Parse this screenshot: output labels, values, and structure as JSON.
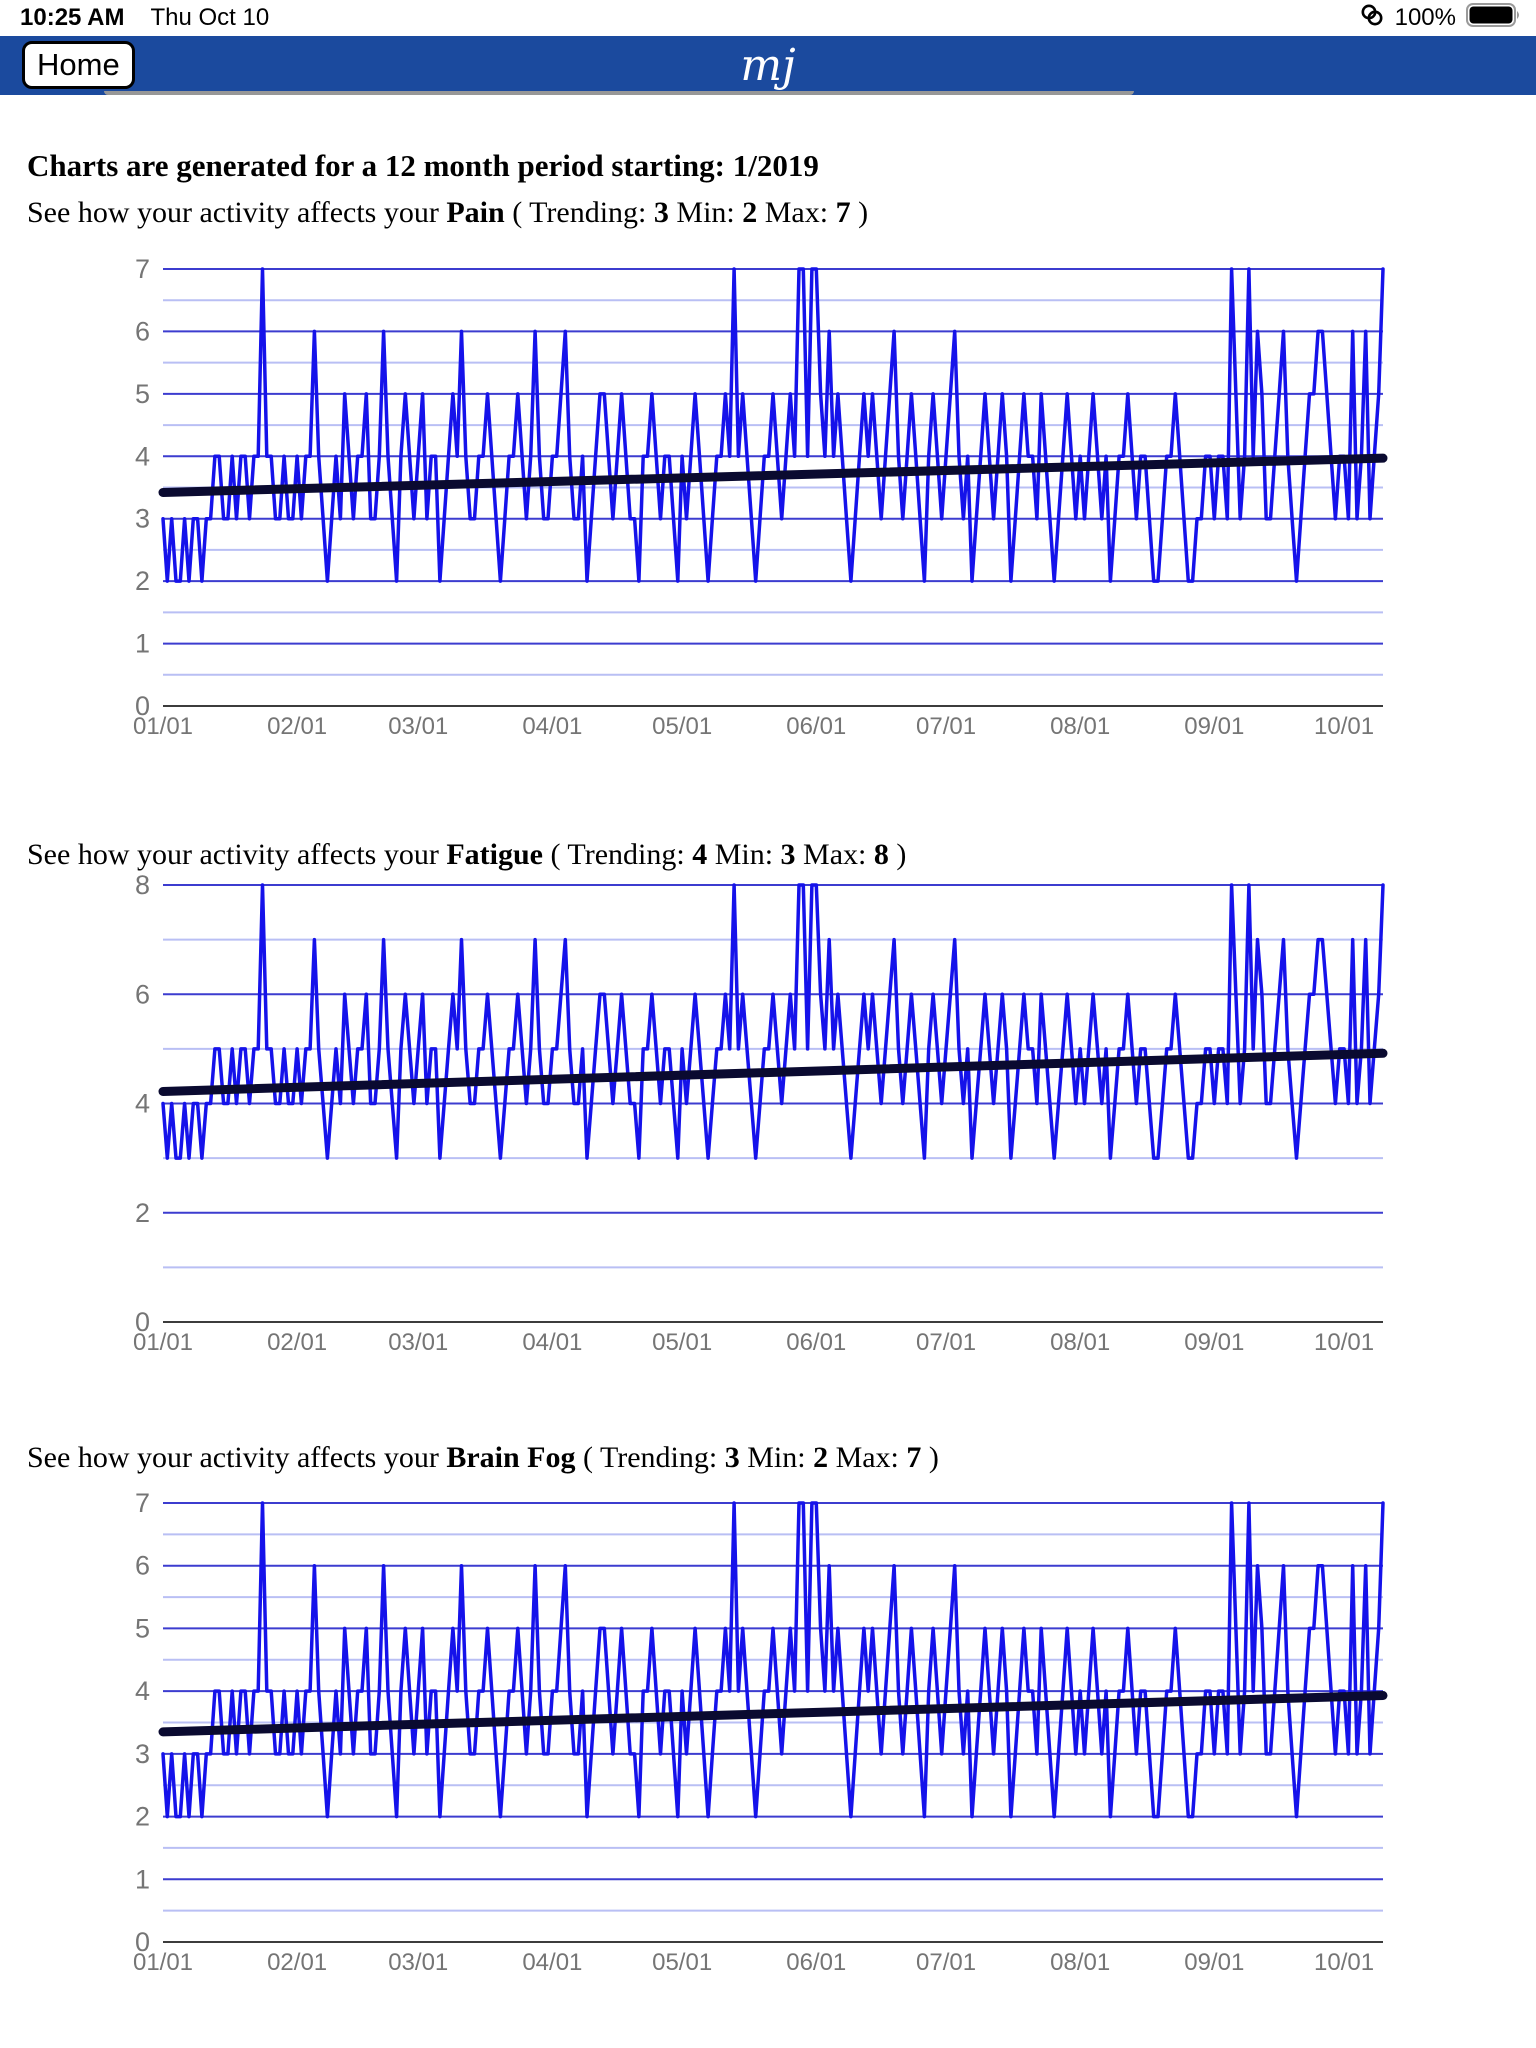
{
  "status_bar": {
    "time": "10:25 AM",
    "date": "Thu Oct 10",
    "battery_percent": "100%",
    "icons": [
      "personal-hotspot-icon",
      "battery-full-icon"
    ]
  },
  "header": {
    "home_button_label": "Home",
    "logo_text": "mj"
  },
  "page": {
    "title": "Charts are generated for a 12 month period starting: 1/2019"
  },
  "colors": {
    "header_bg": "#1b4a9e",
    "data_line": "#1512ea",
    "trend_line": "#0a0a30",
    "grid_major": "#3c3ccf",
    "grid_minor": "#b9bff4",
    "axis_line": "#3c3c3c",
    "axis_label": "#757575",
    "logo_text": "#ffffff"
  },
  "chart_data": [
    {
      "type": "line",
      "heading_prefix": "See how your activity affects your ",
      "metric": "Pain",
      "h_open": " ( Trending: ",
      "trending": "3",
      "h_min": " Min: ",
      "min": "2",
      "h_max": " Max: ",
      "max": "7",
      "h_close": " )",
      "ylim": [
        0,
        7
      ],
      "y_label_step": 1,
      "y_major_step": 1,
      "y_minor_step": 0.5,
      "x_tick_labels": [
        "01/01",
        "02/01",
        "03/01",
        "04/01",
        "05/01",
        "06/01",
        "07/01",
        "08/01",
        "09/01",
        "10/01"
      ],
      "x_tick_day_offsets": [
        0,
        31,
        59,
        90,
        120,
        151,
        181,
        212,
        243,
        273
      ],
      "n_days": 283,
      "trend": {
        "start": 3.42,
        "end": 3.97
      },
      "values": [
        3,
        2,
        3,
        2,
        2,
        3,
        2,
        3,
        3,
        2,
        3,
        3,
        4,
        4,
        3,
        3,
        4,
        3,
        4,
        4,
        3,
        4,
        4,
        7,
        4,
        4,
        3,
        3,
        4,
        3,
        3,
        4,
        3,
        4,
        4,
        6,
        4,
        3,
        2,
        3,
        4,
        3,
        5,
        4,
        3,
        4,
        4,
        5,
        3,
        3,
        4,
        6,
        4,
        3,
        2,
        4,
        5,
        4,
        3,
        4,
        5,
        3,
        4,
        4,
        2,
        3,
        4,
        5,
        4,
        6,
        4,
        3,
        3,
        4,
        4,
        5,
        4,
        3,
        2,
        3,
        4,
        4,
        5,
        4,
        3,
        4,
        6,
        4,
        3,
        3,
        4,
        4,
        5,
        6,
        4,
        3,
        3,
        4,
        2,
        3,
        4,
        5,
        5,
        4,
        3,
        4,
        5,
        4,
        3,
        3,
        2,
        4,
        4,
        5,
        4,
        3,
        4,
        4,
        3,
        2,
        4,
        3,
        4,
        5,
        4,
        3,
        2,
        3,
        4,
        4,
        5,
        4,
        7,
        4,
        5,
        4,
        3,
        2,
        3,
        4,
        4,
        5,
        4,
        3,
        4,
        5,
        4,
        7,
        7,
        4,
        7,
        7,
        5,
        4,
        6,
        4,
        5,
        4,
        3,
        2,
        3,
        4,
        5,
        4,
        5,
        4,
        3,
        4,
        5,
        6,
        4,
        3,
        4,
        5,
        4,
        3,
        2,
        4,
        5,
        4,
        3,
        4,
        5,
        6,
        4,
        3,
        4,
        2,
        3,
        4,
        5,
        4,
        3,
        4,
        5,
        4,
        2,
        3,
        4,
        5,
        4,
        4,
        3,
        5,
        4,
        3,
        2,
        3,
        4,
        5,
        4,
        3,
        4,
        3,
        4,
        5,
        4,
        3,
        4,
        2,
        3,
        4,
        4,
        5,
        4,
        3,
        4,
        4,
        3,
        2,
        2,
        3,
        4,
        4,
        5,
        4,
        3,
        2,
        2,
        3,
        3,
        4,
        4,
        3,
        4,
        4,
        3,
        7,
        5,
        3,
        4,
        7,
        4,
        6,
        5,
        3,
        3,
        4,
        5,
        6,
        4,
        3,
        2,
        3,
        4,
        5,
        5,
        6,
        6,
        5,
        4,
        3,
        4,
        4,
        3,
        6,
        3,
        4,
        6,
        3,
        4,
        5,
        7
      ]
    },
    {
      "type": "line",
      "heading_prefix": "See how your activity affects your ",
      "metric": "Fatigue",
      "h_open": " ( Trending: ",
      "trending": "4",
      "h_min": " Min: ",
      "min": "3",
      "h_max": " Max: ",
      "max": "8",
      "h_close": " )",
      "ylim": [
        0,
        8
      ],
      "y_label_step": 2,
      "y_major_step": 2,
      "y_minor_step": 1,
      "x_tick_labels": [
        "01/01",
        "02/01",
        "03/01",
        "04/01",
        "05/01",
        "06/01",
        "07/01",
        "08/01",
        "09/01",
        "10/01"
      ],
      "x_tick_day_offsets": [
        0,
        31,
        59,
        90,
        120,
        151,
        181,
        212,
        243,
        273
      ],
      "n_days": 283,
      "trend": {
        "start": 4.22,
        "end": 4.92
      },
      "values": [
        4,
        3,
        4,
        3,
        3,
        4,
        3,
        4,
        4,
        3,
        4,
        4,
        5,
        5,
        4,
        4,
        5,
        4,
        5,
        5,
        4,
        5,
        5,
        8,
        5,
        5,
        4,
        4,
        5,
        4,
        4,
        5,
        4,
        5,
        5,
        7,
        5,
        4,
        3,
        4,
        5,
        4,
        6,
        5,
        4,
        5,
        5,
        6,
        4,
        4,
        5,
        7,
        5,
        4,
        3,
        5,
        6,
        5,
        4,
        5,
        6,
        4,
        5,
        5,
        3,
        4,
        5,
        6,
        5,
        7,
        5,
        4,
        4,
        5,
        5,
        6,
        5,
        4,
        3,
        4,
        5,
        5,
        6,
        5,
        4,
        5,
        7,
        5,
        4,
        4,
        5,
        5,
        6,
        7,
        5,
        4,
        4,
        5,
        3,
        4,
        5,
        6,
        6,
        5,
        4,
        5,
        6,
        5,
        4,
        4,
        3,
        5,
        5,
        6,
        5,
        4,
        5,
        5,
        4,
        3,
        5,
        4,
        5,
        6,
        5,
        4,
        3,
        4,
        5,
        5,
        6,
        5,
        8,
        5,
        6,
        5,
        4,
        3,
        4,
        5,
        5,
        6,
        5,
        4,
        5,
        6,
        5,
        8,
        8,
        5,
        8,
        8,
        6,
        5,
        7,
        5,
        6,
        5,
        4,
        3,
        4,
        5,
        6,
        5,
        6,
        5,
        4,
        5,
        6,
        7,
        5,
        4,
        5,
        6,
        5,
        4,
        3,
        5,
        6,
        5,
        4,
        5,
        6,
        7,
        5,
        4,
        5,
        3,
        4,
        5,
        6,
        5,
        4,
        5,
        6,
        5,
        3,
        4,
        5,
        6,
        5,
        5,
        4,
        6,
        5,
        4,
        3,
        4,
        5,
        6,
        5,
        4,
        5,
        4,
        5,
        6,
        5,
        4,
        5,
        3,
        4,
        5,
        5,
        6,
        5,
        4,
        5,
        5,
        4,
        3,
        3,
        4,
        5,
        5,
        6,
        5,
        4,
        3,
        3,
        4,
        4,
        5,
        5,
        4,
        5,
        5,
        4,
        8,
        6,
        4,
        5,
        8,
        5,
        7,
        6,
        4,
        4,
        5,
        6,
        7,
        5,
        4,
        3,
        4,
        5,
        6,
        6,
        7,
        7,
        6,
        5,
        4,
        5,
        5,
        4,
        7,
        4,
        5,
        7,
        4,
        5,
        6,
        8
      ]
    },
    {
      "type": "line",
      "heading_prefix": "See how your activity affects your ",
      "metric": "Brain Fog",
      "h_open": " ( Trending: ",
      "trending": "3",
      "h_min": " Min: ",
      "min": "2",
      "h_max": " Max: ",
      "max": "7",
      "h_close": " )",
      "ylim": [
        0,
        7
      ],
      "y_label_step": 1,
      "y_major_step": 1,
      "y_minor_step": 0.5,
      "x_tick_labels": [
        "01/01",
        "02/01",
        "03/01",
        "04/01",
        "05/01",
        "06/01",
        "07/01",
        "08/01",
        "09/01",
        "10/01"
      ],
      "x_tick_day_offsets": [
        0,
        31,
        59,
        90,
        120,
        151,
        181,
        212,
        243,
        273
      ],
      "n_days": 283,
      "trend": {
        "start": 3.35,
        "end": 3.93
      },
      "values": [
        3,
        2,
        3,
        2,
        2,
        3,
        2,
        3,
        3,
        2,
        3,
        3,
        4,
        4,
        3,
        3,
        4,
        3,
        4,
        4,
        3,
        4,
        4,
        7,
        4,
        4,
        3,
        3,
        4,
        3,
        3,
        4,
        3,
        4,
        4,
        6,
        4,
        3,
        2,
        3,
        4,
        3,
        5,
        4,
        3,
        4,
        4,
        5,
        3,
        3,
        4,
        6,
        4,
        3,
        2,
        4,
        5,
        4,
        3,
        4,
        5,
        3,
        4,
        4,
        2,
        3,
        4,
        5,
        4,
        6,
        4,
        3,
        3,
        4,
        4,
        5,
        4,
        3,
        2,
        3,
        4,
        4,
        5,
        4,
        3,
        4,
        6,
        4,
        3,
        3,
        4,
        4,
        5,
        6,
        4,
        3,
        3,
        4,
        2,
        3,
        4,
        5,
        5,
        4,
        3,
        4,
        5,
        4,
        3,
        3,
        2,
        4,
        4,
        5,
        4,
        3,
        4,
        4,
        3,
        2,
        4,
        3,
        4,
        5,
        4,
        3,
        2,
        3,
        4,
        4,
        5,
        4,
        7,
        4,
        5,
        4,
        3,
        2,
        3,
        4,
        4,
        5,
        4,
        3,
        4,
        5,
        4,
        7,
        7,
        4,
        7,
        7,
        5,
        4,
        6,
        4,
        5,
        4,
        3,
        2,
        3,
        4,
        5,
        4,
        5,
        4,
        3,
        4,
        5,
        6,
        4,
        3,
        4,
        5,
        4,
        3,
        2,
        4,
        5,
        4,
        3,
        4,
        5,
        6,
        4,
        3,
        4,
        2,
        3,
        4,
        5,
        4,
        3,
        4,
        5,
        4,
        2,
        3,
        4,
        5,
        4,
        4,
        3,
        5,
        4,
        3,
        2,
        3,
        4,
        5,
        4,
        3,
        4,
        3,
        4,
        5,
        4,
        3,
        4,
        2,
        3,
        4,
        4,
        5,
        4,
        3,
        4,
        4,
        3,
        2,
        2,
        3,
        4,
        4,
        5,
        4,
        3,
        2,
        2,
        3,
        3,
        4,
        4,
        3,
        4,
        4,
        3,
        7,
        5,
        3,
        4,
        7,
        4,
        6,
        5,
        3,
        3,
        4,
        5,
        6,
        4,
        3,
        2,
        3,
        4,
        5,
        5,
        6,
        6,
        5,
        4,
        3,
        4,
        4,
        3,
        6,
        3,
        4,
        6,
        3,
        4,
        5,
        7
      ]
    }
  ]
}
